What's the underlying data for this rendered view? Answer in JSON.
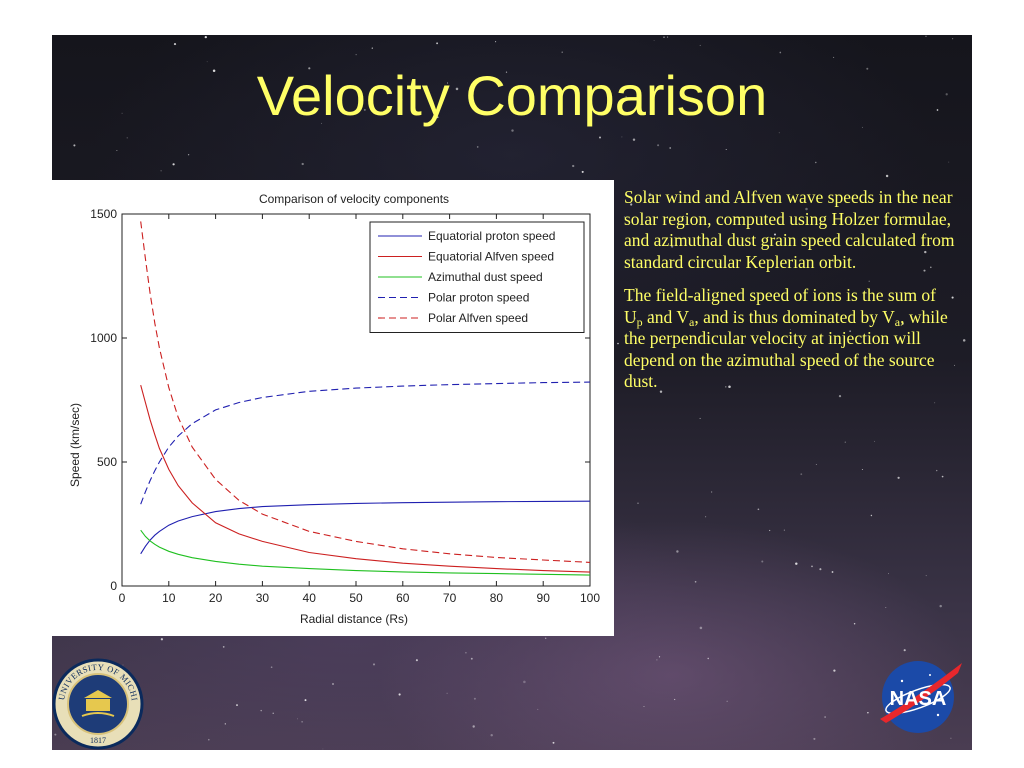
{
  "slide": {
    "title": "Velocity Comparison",
    "paragraph1": "Solar wind and Alfven wave speeds in the near solar region, computed using Holzer formulae, and azimuthal dust grain speed calculated from standard circular Keplerian orbit.",
    "paragraph2": {
      "t1": "The field-aligned speed of ions is the sum of U",
      "s1": "p",
      "t2": " and V",
      "s2": "a",
      "t3": ", and is thus dominated by V",
      "s3": "a",
      "t4": ", while the perpendicular velocity at injection will depend on the azimuthal speed of the source dust."
    }
  },
  "logos": {
    "left": {
      "icon": "university-of-michigan-seal",
      "text": "THE UNIVERSITY OF MICHIGAN",
      "year": "1817"
    },
    "right": {
      "icon": "nasa-meatball-logo",
      "text": "NASA"
    }
  },
  "colors": {
    "title": "#ffff66",
    "body_text": "#ffff66",
    "blue": "#2020b0",
    "red": "#cc2020",
    "green": "#20c020"
  },
  "chart_data": {
    "type": "line",
    "title": "Comparison of velocity components",
    "xlabel": "Radial distance (Rs)",
    "ylabel": "Speed (km/sec)",
    "xlim": [
      0,
      100
    ],
    "ylim": [
      0,
      1500
    ],
    "xticks": [
      "0",
      "10",
      "20",
      "30",
      "40",
      "50",
      "60",
      "70",
      "80",
      "90",
      "100"
    ],
    "yticks": [
      "0",
      "500",
      "1000",
      "1500"
    ],
    "grid": false,
    "legend_position": "top-right",
    "series": [
      {
        "name": "Equatorial proton speed",
        "color": "#2020b0",
        "dash": "solid",
        "x": [
          4,
          5,
          6,
          7,
          8,
          10,
          12,
          15,
          20,
          25,
          30,
          40,
          50,
          60,
          70,
          80,
          90,
          100
        ],
        "y": [
          130,
          160,
          185,
          205,
          220,
          245,
          262,
          280,
          300,
          312,
          320,
          328,
          333,
          336,
          338,
          340,
          341,
          342
        ]
      },
      {
        "name": "Equatorial Alfven speed",
        "color": "#cc2020",
        "dash": "solid",
        "x": [
          4,
          5,
          6,
          7,
          8,
          10,
          12,
          15,
          20,
          25,
          30,
          40,
          50,
          60,
          70,
          80,
          90,
          100
        ],
        "y": [
          810,
          740,
          670,
          610,
          555,
          470,
          405,
          335,
          255,
          210,
          180,
          135,
          110,
          92,
          80,
          70,
          62,
          56
        ]
      },
      {
        "name": "Azimuthal dust speed",
        "color": "#20c020",
        "dash": "solid",
        "x": [
          4,
          5,
          6,
          7,
          8,
          10,
          12,
          15,
          20,
          25,
          30,
          40,
          50,
          60,
          70,
          80,
          90,
          100
        ],
        "y": [
          225,
          200,
          182,
          168,
          157,
          140,
          128,
          114,
          99,
          88,
          80,
          70,
          62,
          57,
          53,
          50,
          47,
          44
        ]
      },
      {
        "name": "Polar proton speed",
        "color": "#2020b0",
        "dash": "dashed",
        "x": [
          4,
          5,
          6,
          7,
          8,
          10,
          12,
          15,
          20,
          25,
          30,
          40,
          50,
          60,
          70,
          80,
          90,
          100
        ],
        "y": [
          330,
          380,
          425,
          465,
          500,
          560,
          605,
          655,
          710,
          740,
          760,
          785,
          798,
          806,
          812,
          816,
          820,
          822
        ]
      },
      {
        "name": "Polar Alfven speed",
        "color": "#cc2020",
        "dash": "dashed",
        "x": [
          4,
          5,
          6,
          7,
          8,
          10,
          12,
          15,
          20,
          25,
          30,
          40,
          50,
          60,
          70,
          80,
          90,
          100
        ],
        "y": [
          1470,
          1320,
          1180,
          1060,
          960,
          800,
          680,
          560,
          430,
          345,
          290,
          220,
          180,
          150,
          130,
          115,
          105,
          95
        ]
      }
    ]
  }
}
